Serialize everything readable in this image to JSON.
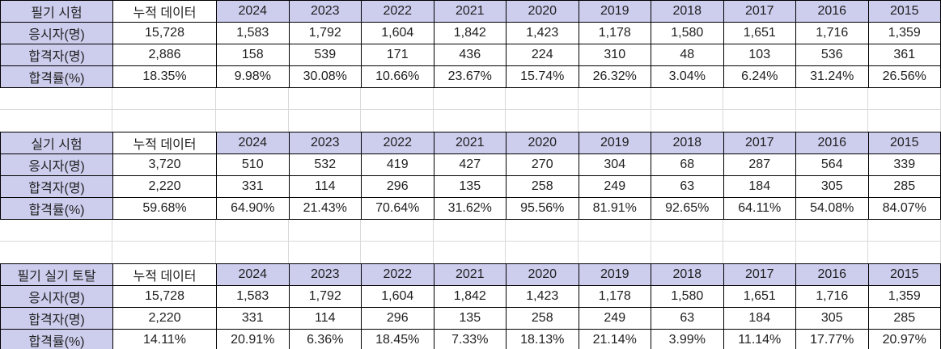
{
  "colors": {
    "header_bg": "#cdcdee",
    "border": "#000000",
    "grid_line": "#d9d9d9",
    "text": "#1f1f1f",
    "cell_bg": "#ffffff"
  },
  "tables": [
    {
      "title": "필기 시험",
      "cumulative_label": "누적 데이터",
      "years": [
        "2024",
        "2023",
        "2022",
        "2021",
        "2020",
        "2019",
        "2018",
        "2017",
        "2016",
        "2015"
      ],
      "rows": [
        {
          "label": "응시자(명)",
          "cumulative": "15,728",
          "values": [
            "1,583",
            "1,792",
            "1,604",
            "1,842",
            "1,423",
            "1,178",
            "1,580",
            "1,651",
            "1,716",
            "1,359"
          ]
        },
        {
          "label": "합격자(명)",
          "cumulative": "2,886",
          "values": [
            "158",
            "539",
            "171",
            "436",
            "224",
            "310",
            "48",
            "103",
            "536",
            "361"
          ]
        },
        {
          "label": "합격률(%)",
          "cumulative": "18.35%",
          "values": [
            "9.98%",
            "30.08%",
            "10.66%",
            "23.67%",
            "15.74%",
            "26.32%",
            "3.04%",
            "6.24%",
            "31.24%",
            "26.56%"
          ]
        }
      ]
    },
    {
      "title": "실기 시험",
      "cumulative_label": "누적 데이터",
      "years": [
        "2024",
        "2023",
        "2022",
        "2021",
        "2020",
        "2019",
        "2018",
        "2017",
        "2016",
        "2015"
      ],
      "rows": [
        {
          "label": "응시자(명)",
          "cumulative": "3,720",
          "values": [
            "510",
            "532",
            "419",
            "427",
            "270",
            "304",
            "68",
            "287",
            "564",
            "339"
          ]
        },
        {
          "label": "합격자(명)",
          "cumulative": "2,220",
          "values": [
            "331",
            "114",
            "296",
            "135",
            "258",
            "249",
            "63",
            "184",
            "305",
            "285"
          ]
        },
        {
          "label": "합격률(%)",
          "cumulative": "59.68%",
          "values": [
            "64.90%",
            "21.43%",
            "70.64%",
            "31.62%",
            "95.56%",
            "81.91%",
            "92.65%",
            "64.11%",
            "54.08%",
            "84.07%"
          ]
        }
      ]
    },
    {
      "title": "필기 실기 토탈",
      "cumulative_label": "누적 데이터",
      "years": [
        "2024",
        "2023",
        "2022",
        "2021",
        "2020",
        "2019",
        "2018",
        "2017",
        "2016",
        "2015"
      ],
      "rows": [
        {
          "label": "응시자(명)",
          "cumulative": "15,728",
          "values": [
            "1,583",
            "1,792",
            "1,604",
            "1,842",
            "1,423",
            "1,178",
            "1,580",
            "1,651",
            "1,716",
            "1,359"
          ]
        },
        {
          "label": "합격자(명)",
          "cumulative": "2,220",
          "values": [
            "331",
            "114",
            "296",
            "135",
            "258",
            "249",
            "63",
            "184",
            "305",
            "285"
          ]
        },
        {
          "label": "합격률(%)",
          "cumulative": "14.11%",
          "values": [
            "20.91%",
            "6.36%",
            "18.45%",
            "7.33%",
            "18.13%",
            "21.14%",
            "3.99%",
            "11.14%",
            "17.77%",
            "20.97%"
          ]
        }
      ]
    }
  ]
}
